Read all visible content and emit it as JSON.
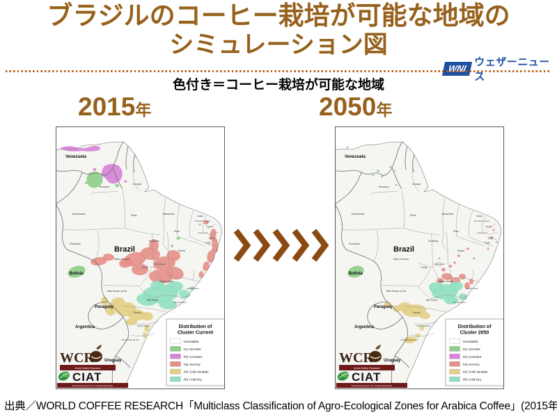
{
  "title": {
    "line1": "ブラジルのコーヒー栽培が可能な地域の",
    "line2": "シミュレーション図",
    "color": "#96611c"
  },
  "brand": {
    "mark": "WNI",
    "name": "ウェザーニュース",
    "color": "#1d50a2"
  },
  "subtitle": "色付き＝コーヒー栽培が可能な地域",
  "maps": [
    {
      "year": "2015",
      "year_suffix": "年",
      "legend_title1": "Distribution of",
      "legend_title2": "Cluster Current"
    },
    {
      "year": "2050",
      "year_suffix": "年",
      "legend_title1": "Distribution of",
      "legend_title2": "Cluster 2050"
    }
  ],
  "legend_items": [
    {
      "label": "Unsuitable",
      "color": "#ffffff"
    },
    {
      "label": "#1) Hot-Wet",
      "color": "#8fce8a"
    },
    {
      "label": "#2) Constant",
      "color": "#d883da"
    },
    {
      "label": "#3) Hot-Dry",
      "color": "#e5908a"
    },
    {
      "label": "#4) Cold-Variable",
      "color": "#e3cf87"
    },
    {
      "label": "#5) Cold-Dry",
      "color": "#92dfc2"
    }
  ],
  "map_labels": {
    "brazil": "Brazil",
    "countries": [
      "Venezuela",
      "Bolivia",
      "Paraguay",
      "Argentina",
      "Uruguay"
    ],
    "states": [
      "Roraima",
      "Amapá",
      "Amazonas",
      "Pará",
      "Maranhão",
      "Ceará",
      "Rio Grande do Norte",
      "Paraíba",
      "Pernambuco",
      "Alagoas",
      "Sergipe",
      "Piauí",
      "Tocantins",
      "Bahia",
      "Rondônia",
      "Mato Grosso",
      "Goiás",
      "Distrito Federal",
      "Minas Gerais",
      "Espírito Santo",
      "Mato Grosso do Sul",
      "São Paulo",
      "Rio de Janeiro",
      "Paraná",
      "Santa Catarina",
      "Rio Grande do Sul"
    ]
  },
  "logos": {
    "wcr": {
      "name": "WCR",
      "tagline": "World Coffee Research"
    },
    "ciat": {
      "name": "CIAT",
      "tagline": "International Center for Tropical Agriculture"
    }
  },
  "source": "出典／WORLD COFFEE RESEARCH「Multiclass Classification of Agro-Ecological Zones for Arabica Coffee」(2015年)"
}
